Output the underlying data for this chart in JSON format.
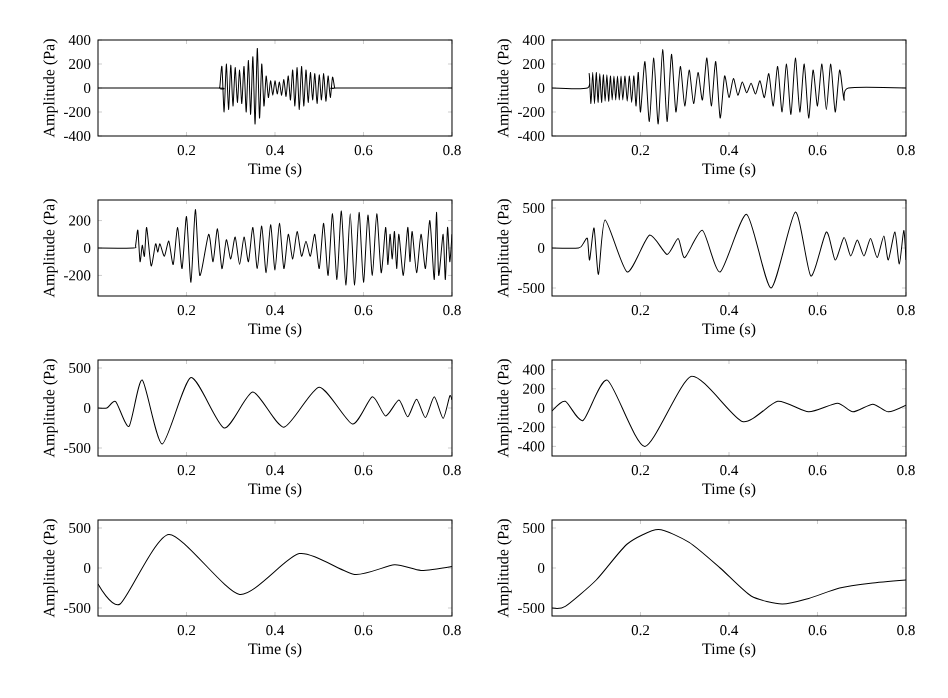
{
  "chart_data": [
    {
      "type": "line",
      "xlabel": "Time (s)",
      "ylabel": "Amplitude (Pa)",
      "xlim": [
        0,
        0.8
      ],
      "xticks": [
        0.2,
        0.4,
        0.6,
        0.8
      ],
      "ylim": [
        -400,
        400
      ],
      "yticks": [
        -400,
        -200,
        0,
        200,
        400
      ],
      "x": [
        0,
        0.27,
        0.275,
        0.28,
        0.285,
        0.29,
        0.295,
        0.3,
        0.305,
        0.31,
        0.315,
        0.32,
        0.325,
        0.33,
        0.335,
        0.34,
        0.345,
        0.35,
        0.355,
        0.36,
        0.365,
        0.37,
        0.375,
        0.38,
        0.385,
        0.39,
        0.395,
        0.4,
        0.405,
        0.41,
        0.415,
        0.42,
        0.425,
        0.43,
        0.435,
        0.44,
        0.445,
        0.45,
        0.455,
        0.46,
        0.465,
        0.47,
        0.475,
        0.48,
        0.485,
        0.49,
        0.495,
        0.5,
        0.505,
        0.51,
        0.515,
        0.52,
        0.525,
        0.53,
        0.535,
        0.54,
        0.8
      ],
      "series": [
        {
          "color": "#000000",
          "values": [
            0,
            0,
            0,
            180,
            -200,
            200,
            -180,
            190,
            -150,
            170,
            -120,
            150,
            -130,
            180,
            -200,
            230,
            -220,
            260,
            -300,
            330,
            -250,
            200,
            -150,
            100,
            -80,
            60,
            -60,
            60,
            -50,
            50,
            -60,
            70,
            -70,
            100,
            -100,
            150,
            -150,
            170,
            -180,
            180,
            -150,
            150,
            -120,
            130,
            -100,
            120,
            -130,
            110,
            -100,
            120,
            -110,
            100,
            -80,
            90,
            0,
            0,
            0
          ]
        }
      ]
    },
    {
      "type": "line",
      "xlabel": "Time (s)",
      "ylabel": "Amplitude (Pa)",
      "xlim": [
        0,
        0.8
      ],
      "xticks": [
        0.2,
        0.4,
        0.6,
        0.8
      ],
      "ylim": [
        -400,
        400
      ],
      "yticks": [
        -400,
        -200,
        0,
        200,
        400
      ],
      "x": [
        0,
        0.08,
        0.084,
        0.088,
        0.092,
        0.096,
        0.1,
        0.104,
        0.108,
        0.112,
        0.116,
        0.12,
        0.124,
        0.128,
        0.132,
        0.136,
        0.14,
        0.144,
        0.148,
        0.152,
        0.156,
        0.16,
        0.165,
        0.17,
        0.175,
        0.18,
        0.185,
        0.19,
        0.195,
        0.2,
        0.21,
        0.22,
        0.23,
        0.24,
        0.25,
        0.26,
        0.27,
        0.28,
        0.29,
        0.3,
        0.31,
        0.32,
        0.33,
        0.34,
        0.35,
        0.36,
        0.37,
        0.38,
        0.39,
        0.4,
        0.41,
        0.42,
        0.43,
        0.44,
        0.45,
        0.46,
        0.47,
        0.48,
        0.49,
        0.5,
        0.51,
        0.52,
        0.53,
        0.54,
        0.55,
        0.56,
        0.57,
        0.58,
        0.59,
        0.6,
        0.61,
        0.62,
        0.63,
        0.64,
        0.65,
        0.66,
        0.67,
        0.8
      ],
      "series": [
        {
          "color": "#000000",
          "values": [
            0,
            0,
            120,
            -130,
            130,
            -130,
            130,
            -120,
            120,
            -120,
            110,
            -110,
            110,
            -110,
            100,
            -100,
            100,
            -100,
            100,
            -100,
            100,
            -100,
            100,
            -110,
            100,
            -120,
            100,
            -150,
            130,
            -200,
            220,
            -280,
            250,
            -300,
            320,
            -280,
            280,
            -200,
            180,
            -150,
            150,
            -130,
            130,
            -100,
            250,
            -150,
            220,
            -250,
            100,
            -80,
            80,
            -60,
            50,
            -40,
            40,
            -50,
            60,
            -80,
            120,
            -150,
            180,
            -200,
            200,
            -220,
            250,
            -200,
            200,
            -250,
            150,
            -150,
            200,
            -180,
            200,
            -200,
            150,
            -100,
            0,
            0
          ]
        }
      ]
    },
    {
      "type": "line",
      "xlabel": "Time (s)",
      "ylabel": "Amplitude (Pa)",
      "xlim": [
        0,
        0.8
      ],
      "xticks": [
        0.2,
        0.4,
        0.6,
        0.8
      ],
      "ylim": [
        -350,
        350
      ],
      "yticks": [
        -200,
        0,
        200
      ],
      "x": [
        0,
        0.08,
        0.085,
        0.09,
        0.095,
        0.1,
        0.105,
        0.11,
        0.12,
        0.13,
        0.135,
        0.14,
        0.15,
        0.16,
        0.17,
        0.18,
        0.19,
        0.2,
        0.21,
        0.22,
        0.23,
        0.25,
        0.26,
        0.27,
        0.28,
        0.29,
        0.3,
        0.31,
        0.32,
        0.33,
        0.34,
        0.35,
        0.36,
        0.37,
        0.38,
        0.39,
        0.4,
        0.41,
        0.42,
        0.43,
        0.44,
        0.45,
        0.46,
        0.47,
        0.48,
        0.49,
        0.5,
        0.51,
        0.52,
        0.53,
        0.54,
        0.55,
        0.56,
        0.57,
        0.58,
        0.59,
        0.6,
        0.61,
        0.62,
        0.63,
        0.64,
        0.65,
        0.655,
        0.66,
        0.665,
        0.67,
        0.675,
        0.68,
        0.69,
        0.7,
        0.705,
        0.71,
        0.72,
        0.73,
        0.74,
        0.75,
        0.76,
        0.765,
        0.77,
        0.78,
        0.785,
        0.79,
        0.795,
        0.8
      ],
      "series": [
        {
          "color": "#000000",
          "values": [
            0,
            0,
            20,
            130,
            -100,
            20,
            -60,
            150,
            -130,
            30,
            -30,
            30,
            -60,
            50,
            -120,
            150,
            -150,
            230,
            -250,
            280,
            -200,
            100,
            -100,
            140,
            -150,
            60,
            -80,
            80,
            -120,
            80,
            -100,
            150,
            -150,
            160,
            -180,
            170,
            -160,
            180,
            -150,
            100,
            -80,
            120,
            -60,
            50,
            -60,
            100,
            -150,
            180,
            -200,
            250,
            -230,
            270,
            -270,
            250,
            -270,
            260,
            -250,
            240,
            -200,
            250,
            -180,
            150,
            -120,
            100,
            -80,
            120,
            -150,
            100,
            -200,
            150,
            -100,
            120,
            -180,
            100,
            -150,
            200,
            -230,
            260,
            -200,
            100,
            -230,
            150,
            -100,
            100
          ]
        }
      ]
    },
    {
      "type": "line",
      "xlabel": "Time (s)",
      "ylabel": "Amplitude (Pa)",
      "xlim": [
        0,
        0.8
      ],
      "xticks": [
        0.2,
        0.4,
        0.6,
        0.8
      ],
      "ylim": [
        -600,
        600
      ],
      "yticks": [
        -500,
        0,
        500
      ],
      "x": [
        0,
        0.06,
        0.07,
        0.08,
        0.085,
        0.095,
        0.105,
        0.12,
        0.17,
        0.22,
        0.26,
        0.285,
        0.3,
        0.34,
        0.38,
        0.44,
        0.495,
        0.55,
        0.585,
        0.62,
        0.64,
        0.66,
        0.675,
        0.69,
        0.705,
        0.72,
        0.735,
        0.75,
        0.76,
        0.775,
        0.785,
        0.795,
        0.8
      ],
      "series": [
        {
          "color": "#000000",
          "values": [
            0,
            0,
            50,
            120,
            -150,
            250,
            -330,
            350,
            -300,
            160,
            -80,
            120,
            -120,
            220,
            -300,
            420,
            -500,
            450,
            -350,
            200,
            -150,
            130,
            -100,
            100,
            -100,
            120,
            -120,
            150,
            -150,
            200,
            -200,
            220,
            -150
          ]
        }
      ]
    },
    {
      "type": "line",
      "xlabel": "Time (s)",
      "ylabel": "Amplitude (Pa)",
      "xlim": [
        0,
        0.8
      ],
      "xticks": [
        0.2,
        0.4,
        0.6,
        0.8
      ],
      "ylim": [
        -600,
        600
      ],
      "yticks": [
        -500,
        0,
        500
      ],
      "x": [
        0,
        0.02,
        0.04,
        0.07,
        0.1,
        0.145,
        0.21,
        0.285,
        0.35,
        0.42,
        0.5,
        0.575,
        0.62,
        0.65,
        0.68,
        0.7,
        0.72,
        0.74,
        0.76,
        0.78,
        0.795,
        0.8
      ],
      "series": [
        {
          "color": "#000000",
          "values": [
            0,
            0,
            80,
            -230,
            350,
            -450,
            380,
            -250,
            200,
            -240,
            260,
            -200,
            140,
            -100,
            100,
            -110,
            110,
            -120,
            140,
            -130,
            150,
            100
          ]
        }
      ]
    },
    {
      "type": "line",
      "xlabel": "Time (s)",
      "ylabel": "Amplitude (Pa)",
      "xlim": [
        0,
        0.8
      ],
      "xticks": [
        0.2,
        0.4,
        0.6,
        0.8
      ],
      "ylim": [
        -500,
        500
      ],
      "yticks": [
        -400,
        -200,
        0,
        200,
        400
      ],
      "x": [
        0,
        0.03,
        0.07,
        0.125,
        0.21,
        0.315,
        0.43,
        0.51,
        0.58,
        0.645,
        0.68,
        0.725,
        0.76,
        0.8
      ],
      "series": [
        {
          "color": "#000000",
          "values": [
            -30,
            70,
            -130,
            290,
            -400,
            330,
            -140,
            70,
            -40,
            50,
            -40,
            40,
            -40,
            30
          ]
        }
      ]
    },
    {
      "type": "line",
      "xlabel": "Time (s)",
      "ylabel": "Amplitude (Pa)",
      "xlim": [
        0,
        0.8
      ],
      "xticks": [
        0.2,
        0.4,
        0.6,
        0.8
      ],
      "ylim": [
        -600,
        600
      ],
      "yticks": [
        -500,
        0,
        500
      ],
      "x": [
        0,
        0.05,
        0.16,
        0.32,
        0.455,
        0.58,
        0.67,
        0.73,
        0.8
      ],
      "series": [
        {
          "color": "#000000",
          "values": [
            -200,
            -450,
            420,
            -330,
            180,
            -80,
            40,
            -30,
            20
          ]
        }
      ]
    },
    {
      "type": "line",
      "xlabel": "Time (s)",
      "ylabel": "Amplitude (Pa)",
      "xlim": [
        0,
        0.8
      ],
      "xticks": [
        0.2,
        0.4,
        0.6,
        0.8
      ],
      "ylim": [
        -600,
        600
      ],
      "yticks": [
        -500,
        0,
        500
      ],
      "x": [
        0,
        0.03,
        0.1,
        0.17,
        0.24,
        0.31,
        0.38,
        0.45,
        0.52,
        0.58,
        0.65,
        0.72,
        0.8
      ],
      "series": [
        {
          "color": "#000000",
          "values": [
            -500,
            -480,
            -150,
            300,
            480,
            320,
            0,
            -350,
            -450,
            -380,
            -250,
            -190,
            -150
          ]
        }
      ]
    }
  ]
}
